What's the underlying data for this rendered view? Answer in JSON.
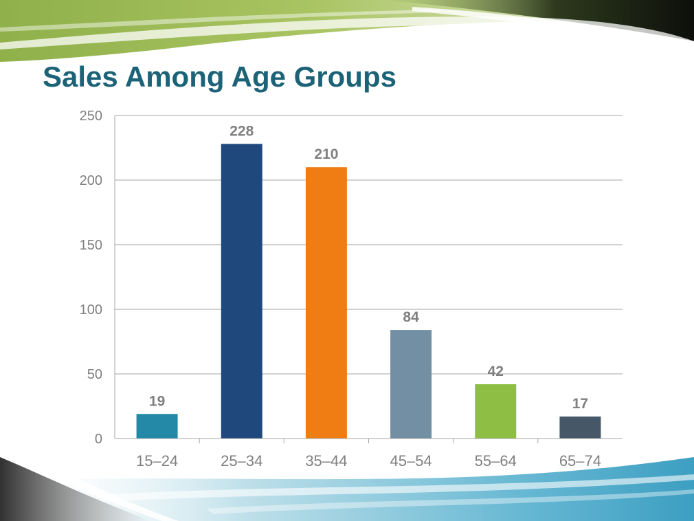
{
  "slide": {
    "title": "Sales Among Age Groups"
  },
  "chart_data": {
    "type": "bar",
    "title": "Sales Among Age Groups",
    "categories": [
      "15–24",
      "25–34",
      "35–44",
      "45–54",
      "55–64",
      "65–74"
    ],
    "values": [
      19,
      228,
      210,
      84,
      42,
      17
    ],
    "bar_colors": [
      "#2389a6",
      "#1f497d",
      "#f07c14",
      "#738fa3",
      "#8fbe44",
      "#465867"
    ],
    "xlabel": "",
    "ylabel": "",
    "ylim": [
      0,
      250
    ],
    "yticks": [
      0,
      50,
      100,
      150,
      200,
      250
    ],
    "grid": true,
    "data_labels": true,
    "legend": "none"
  },
  "colors": {
    "title": "#1c6378",
    "axis_text": "#7f7f7f",
    "gridline": "#a6a6a6",
    "swoosh_green": "#7da33a",
    "swoosh_teal": "#4aa5c4"
  }
}
